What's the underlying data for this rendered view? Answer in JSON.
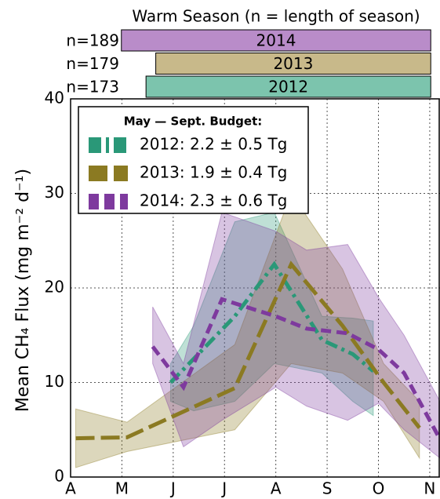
{
  "chart_data": {
    "type": "line",
    "title": "Warm Season (n = length of season)",
    "seasons": [
      {
        "label": "2014",
        "n_label": "n=189",
        "start": 0.99,
        "end": 7.02,
        "color": "#b98cc9"
      },
      {
        "label": "2013",
        "n_label": "n=179",
        "start": 1.66,
        "end": 7.02,
        "color": "#c8b98a"
      },
      {
        "label": "2012",
        "n_label": "n=173",
        "start": 1.47,
        "end": 7.02,
        "color": "#7cc4ad"
      }
    ],
    "ylabel": "Mean CH₄ Flux (mg m⁻² d⁻¹)",
    "xlim": [
      0,
      7.2
    ],
    "xticks": [
      {
        "value": 0,
        "label": "A"
      },
      {
        "value": 1,
        "label": "M"
      },
      {
        "value": 2,
        "label": "J"
      },
      {
        "value": 3,
        "label": "J"
      },
      {
        "value": 4,
        "label": "A"
      },
      {
        "value": 5,
        "label": "S"
      },
      {
        "value": 6,
        "label": "O"
      },
      {
        "value": 7,
        "label": "N"
      }
    ],
    "ylim": [
      0,
      40
    ],
    "yticks": [
      0,
      10,
      20,
      30,
      40
    ],
    "grid": true,
    "legend_title": "May — Sept. Budget:",
    "legend": "upper left",
    "series": [
      {
        "name": "2012: 2.2 ± 0.5 Tg",
        "color": "#2a9878",
        "dash": "16 6 4 6",
        "x": [
          1.95,
          2.4,
          3.2,
          3.97,
          4.9,
          5.5,
          5.9
        ],
        "values": [
          10,
          12.5,
          17,
          22.5,
          14.5,
          13,
          11.2
        ],
        "upper": [
          12,
          16,
          27,
          28,
          17,
          16.8,
          16.5
        ],
        "lower": [
          8,
          7,
          8,
          12,
          11,
          8,
          6.5
        ]
      },
      {
        "name": "2013: 1.9 ± 0.4 Tg",
        "color": "#8b7a22",
        "dash": "24 8",
        "x": [
          0.1,
          1.1,
          3.2,
          4.3,
          5.3,
          6.1,
          6.8
        ],
        "values": [
          4.1,
          4.2,
          9.4,
          22.5,
          16,
          10,
          5.2
        ],
        "upper": [
          7.2,
          5.8,
          14,
          30,
          22,
          12,
          8
        ],
        "lower": [
          1,
          2.7,
          5,
          12,
          11,
          8,
          2
        ]
      },
      {
        "name": "2014: 2.3 ± 0.6 Tg",
        "color": "#7e3a9e",
        "dash": "13 7",
        "x": [
          1.6,
          2.2,
          2.95,
          4.0,
          4.6,
          5.4,
          6.0,
          6.5,
          7.2
        ],
        "values": [
          13.8,
          9.5,
          18.8,
          17,
          15.7,
          15.2,
          13.5,
          11,
          4
        ],
        "upper": [
          18,
          12,
          28,
          26,
          24,
          24.6,
          19,
          15,
          8
        ],
        "lower": [
          12,
          3.2,
          6,
          9.5,
          7.5,
          6,
          7.8,
          5,
          2
        ]
      }
    ]
  }
}
